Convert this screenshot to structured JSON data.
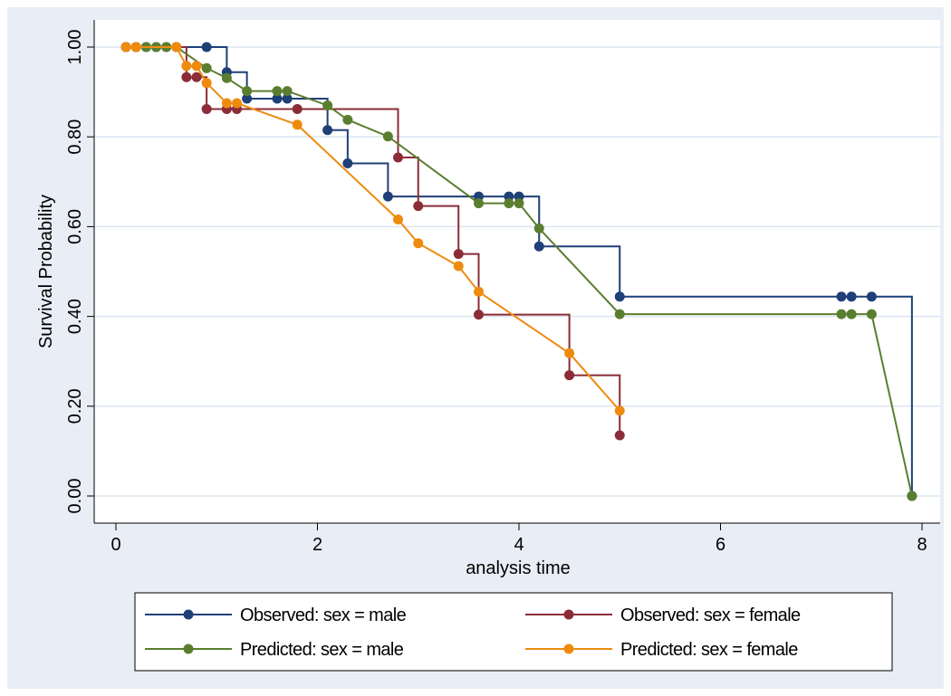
{
  "chart_data": {
    "type": "line",
    "ylabel": "Survival Probability",
    "xlabel": "analysis time",
    "xlim": [
      0,
      8
    ],
    "ylim": [
      0,
      1
    ],
    "x_ticks": [
      {
        "value": 0,
        "label": "0"
      },
      {
        "value": 2,
        "label": "2"
      },
      {
        "value": 4,
        "label": "4"
      },
      {
        "value": 6,
        "label": "6"
      },
      {
        "value": 8,
        "label": "8"
      }
    ],
    "y_ticks": [
      {
        "value": 0,
        "label": "0.00"
      },
      {
        "value": 0.2,
        "label": "0.20"
      },
      {
        "value": 0.4,
        "label": "0.40"
      },
      {
        "value": 0.6,
        "label": "0.60"
      },
      {
        "value": 0.8,
        "label": "0.80"
      },
      {
        "value": 1.0,
        "label": "1.00"
      }
    ],
    "grid": true,
    "legend_position": "bottom",
    "series": [
      {
        "name": "Observed: sex = male",
        "color": "#1f3f77",
        "step": true,
        "points": [
          [
            0.1,
            1.0
          ],
          [
            0.2,
            1.0
          ],
          [
            0.3,
            1.0
          ],
          [
            0.4,
            1.0
          ],
          [
            0.5,
            1.0
          ],
          [
            0.6,
            1.0
          ],
          [
            0.9,
            1.0
          ],
          [
            1.1,
            0.944
          ],
          [
            1.3,
            0.885
          ],
          [
            1.6,
            0.885
          ],
          [
            1.7,
            0.885
          ],
          [
            2.1,
            0.815
          ],
          [
            2.3,
            0.741
          ],
          [
            2.7,
            0.667
          ],
          [
            3.6,
            0.667
          ],
          [
            3.9,
            0.667
          ],
          [
            4.0,
            0.667
          ],
          [
            4.2,
            0.556
          ],
          [
            5.0,
            0.444
          ],
          [
            7.2,
            0.444
          ],
          [
            7.3,
            0.444
          ],
          [
            7.5,
            0.444
          ],
          [
            7.9,
            0.0
          ]
        ]
      },
      {
        "name": "Observed: sex = female",
        "color": "#8b2c37",
        "step": true,
        "points": [
          [
            0.1,
            1.0
          ],
          [
            0.2,
            1.0
          ],
          [
            0.7,
            0.933
          ],
          [
            0.8,
            0.933
          ],
          [
            0.9,
            0.862
          ],
          [
            1.1,
            0.862
          ],
          [
            1.2,
            0.862
          ],
          [
            1.8,
            0.862
          ],
          [
            2.8,
            0.754
          ],
          [
            3.0,
            0.646
          ],
          [
            3.4,
            0.539
          ],
          [
            3.6,
            0.404
          ],
          [
            4.5,
            0.269
          ],
          [
            5.0,
            0.135
          ]
        ]
      },
      {
        "name": "Predicted: sex = male",
        "color": "#5a7e2f",
        "step": false,
        "points": [
          [
            0.1,
            1.0
          ],
          [
            0.2,
            1.0
          ],
          [
            0.3,
            1.0
          ],
          [
            0.4,
            1.0
          ],
          [
            0.5,
            1.0
          ],
          [
            0.6,
            1.0
          ],
          [
            0.9,
            0.953
          ],
          [
            1.1,
            0.931
          ],
          [
            1.3,
            0.902
          ],
          [
            1.6,
            0.902
          ],
          [
            1.7,
            0.902
          ],
          [
            2.1,
            0.87
          ],
          [
            2.3,
            0.838
          ],
          [
            2.7,
            0.801
          ],
          [
            3.6,
            0.652
          ],
          [
            3.9,
            0.652
          ],
          [
            4.0,
            0.652
          ],
          [
            4.2,
            0.596
          ],
          [
            5.0,
            0.405
          ],
          [
            7.2,
            0.405
          ],
          [
            7.3,
            0.405
          ],
          [
            7.5,
            0.405
          ],
          [
            7.9,
            0.0
          ]
        ]
      },
      {
        "name": "Predicted: sex = female",
        "color": "#ee8b0e",
        "step": false,
        "points": [
          [
            0.1,
            1.0
          ],
          [
            0.2,
            1.0
          ],
          [
            0.6,
            1.0
          ],
          [
            0.7,
            0.958
          ],
          [
            0.8,
            0.958
          ],
          [
            0.9,
            0.92
          ],
          [
            1.1,
            0.875
          ],
          [
            1.2,
            0.875
          ],
          [
            1.8,
            0.827
          ],
          [
            2.8,
            0.616
          ],
          [
            3.0,
            0.563
          ],
          [
            3.4,
            0.512
          ],
          [
            3.6,
            0.455
          ],
          [
            4.5,
            0.318
          ],
          [
            5.0,
            0.19
          ]
        ]
      }
    ]
  },
  "colors": {
    "page_background": "#ffffff",
    "outer_background": "#e9eef6",
    "plot_background": "#ffffff",
    "grid": "#dce6f1"
  }
}
